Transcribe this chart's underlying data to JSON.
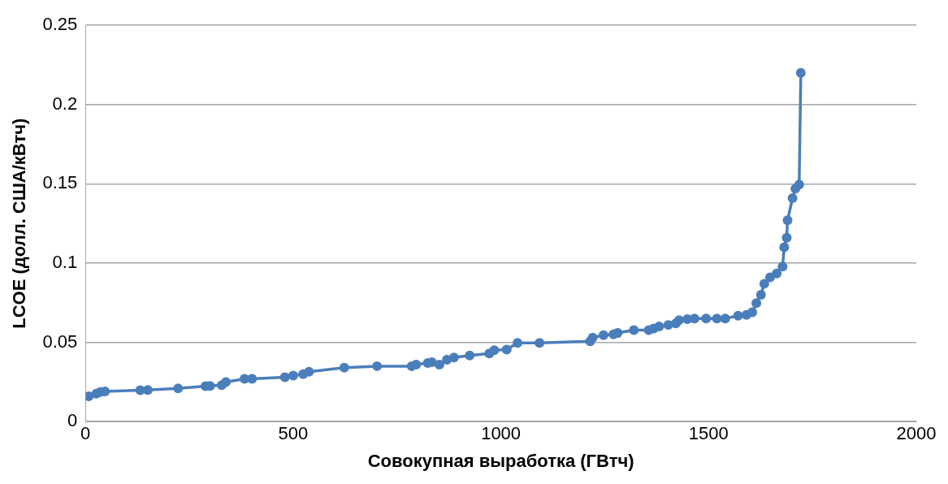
{
  "chart_data": {
    "type": "line",
    "xlabel": "Совокупная выработка (ГВтч)",
    "ylabel": "LCOE (долл. США/кВтч)",
    "series": [
      {
        "color": "#4a7ebb",
        "x": [
          8,
          26,
          36,
          47,
          132,
          150,
          223,
          289,
          300,
          328,
          338,
          383,
          401,
          480,
          500,
          524,
          538,
          623,
          702,
          785,
          796,
          824,
          834,
          852,
          870,
          887,
          925,
          972,
          984,
          1014,
          1040,
          1093,
          1215,
          1221,
          1247,
          1271,
          1281,
          1320,
          1356,
          1368,
          1381,
          1403,
          1421,
          1429,
          1449,
          1466,
          1494,
          1520,
          1540,
          1571,
          1591,
          1605,
          1615,
          1626,
          1634,
          1648,
          1664,
          1678,
          1682,
          1688,
          1690,
          1702,
          1709,
          1718,
          1722
        ],
        "values": [
          0.016,
          0.0176,
          0.0187,
          0.019,
          0.0198,
          0.02,
          0.021,
          0.0224,
          0.0225,
          0.023,
          0.025,
          0.027,
          0.027,
          0.028,
          0.029,
          0.03,
          0.0315,
          0.034,
          0.035,
          0.035,
          0.036,
          0.037,
          0.0375,
          0.036,
          0.039,
          0.0405,
          0.0417,
          0.043,
          0.045,
          0.0454,
          0.0497,
          0.0497,
          0.0507,
          0.053,
          0.0545,
          0.055,
          0.056,
          0.0577,
          0.0577,
          0.0588,
          0.06,
          0.061,
          0.062,
          0.064,
          0.0646,
          0.065,
          0.065,
          0.065,
          0.065,
          0.0668,
          0.0673,
          0.069,
          0.0748,
          0.08,
          0.087,
          0.091,
          0.0935,
          0.0978,
          0.11,
          0.116,
          0.127,
          0.141,
          0.147,
          0.1496,
          0.22
        ]
      }
    ],
    "xlim": [
      0,
      2000
    ],
    "xticks": [
      0,
      500,
      1000,
      1500,
      2000
    ],
    "ylim": [
      0,
      0.25
    ],
    "yticks": [
      0,
      0.05,
      0.1,
      0.15,
      0.2,
      0.25
    ],
    "grid": "y",
    "marker": "circle",
    "line_style": "solid",
    "legend": false
  }
}
